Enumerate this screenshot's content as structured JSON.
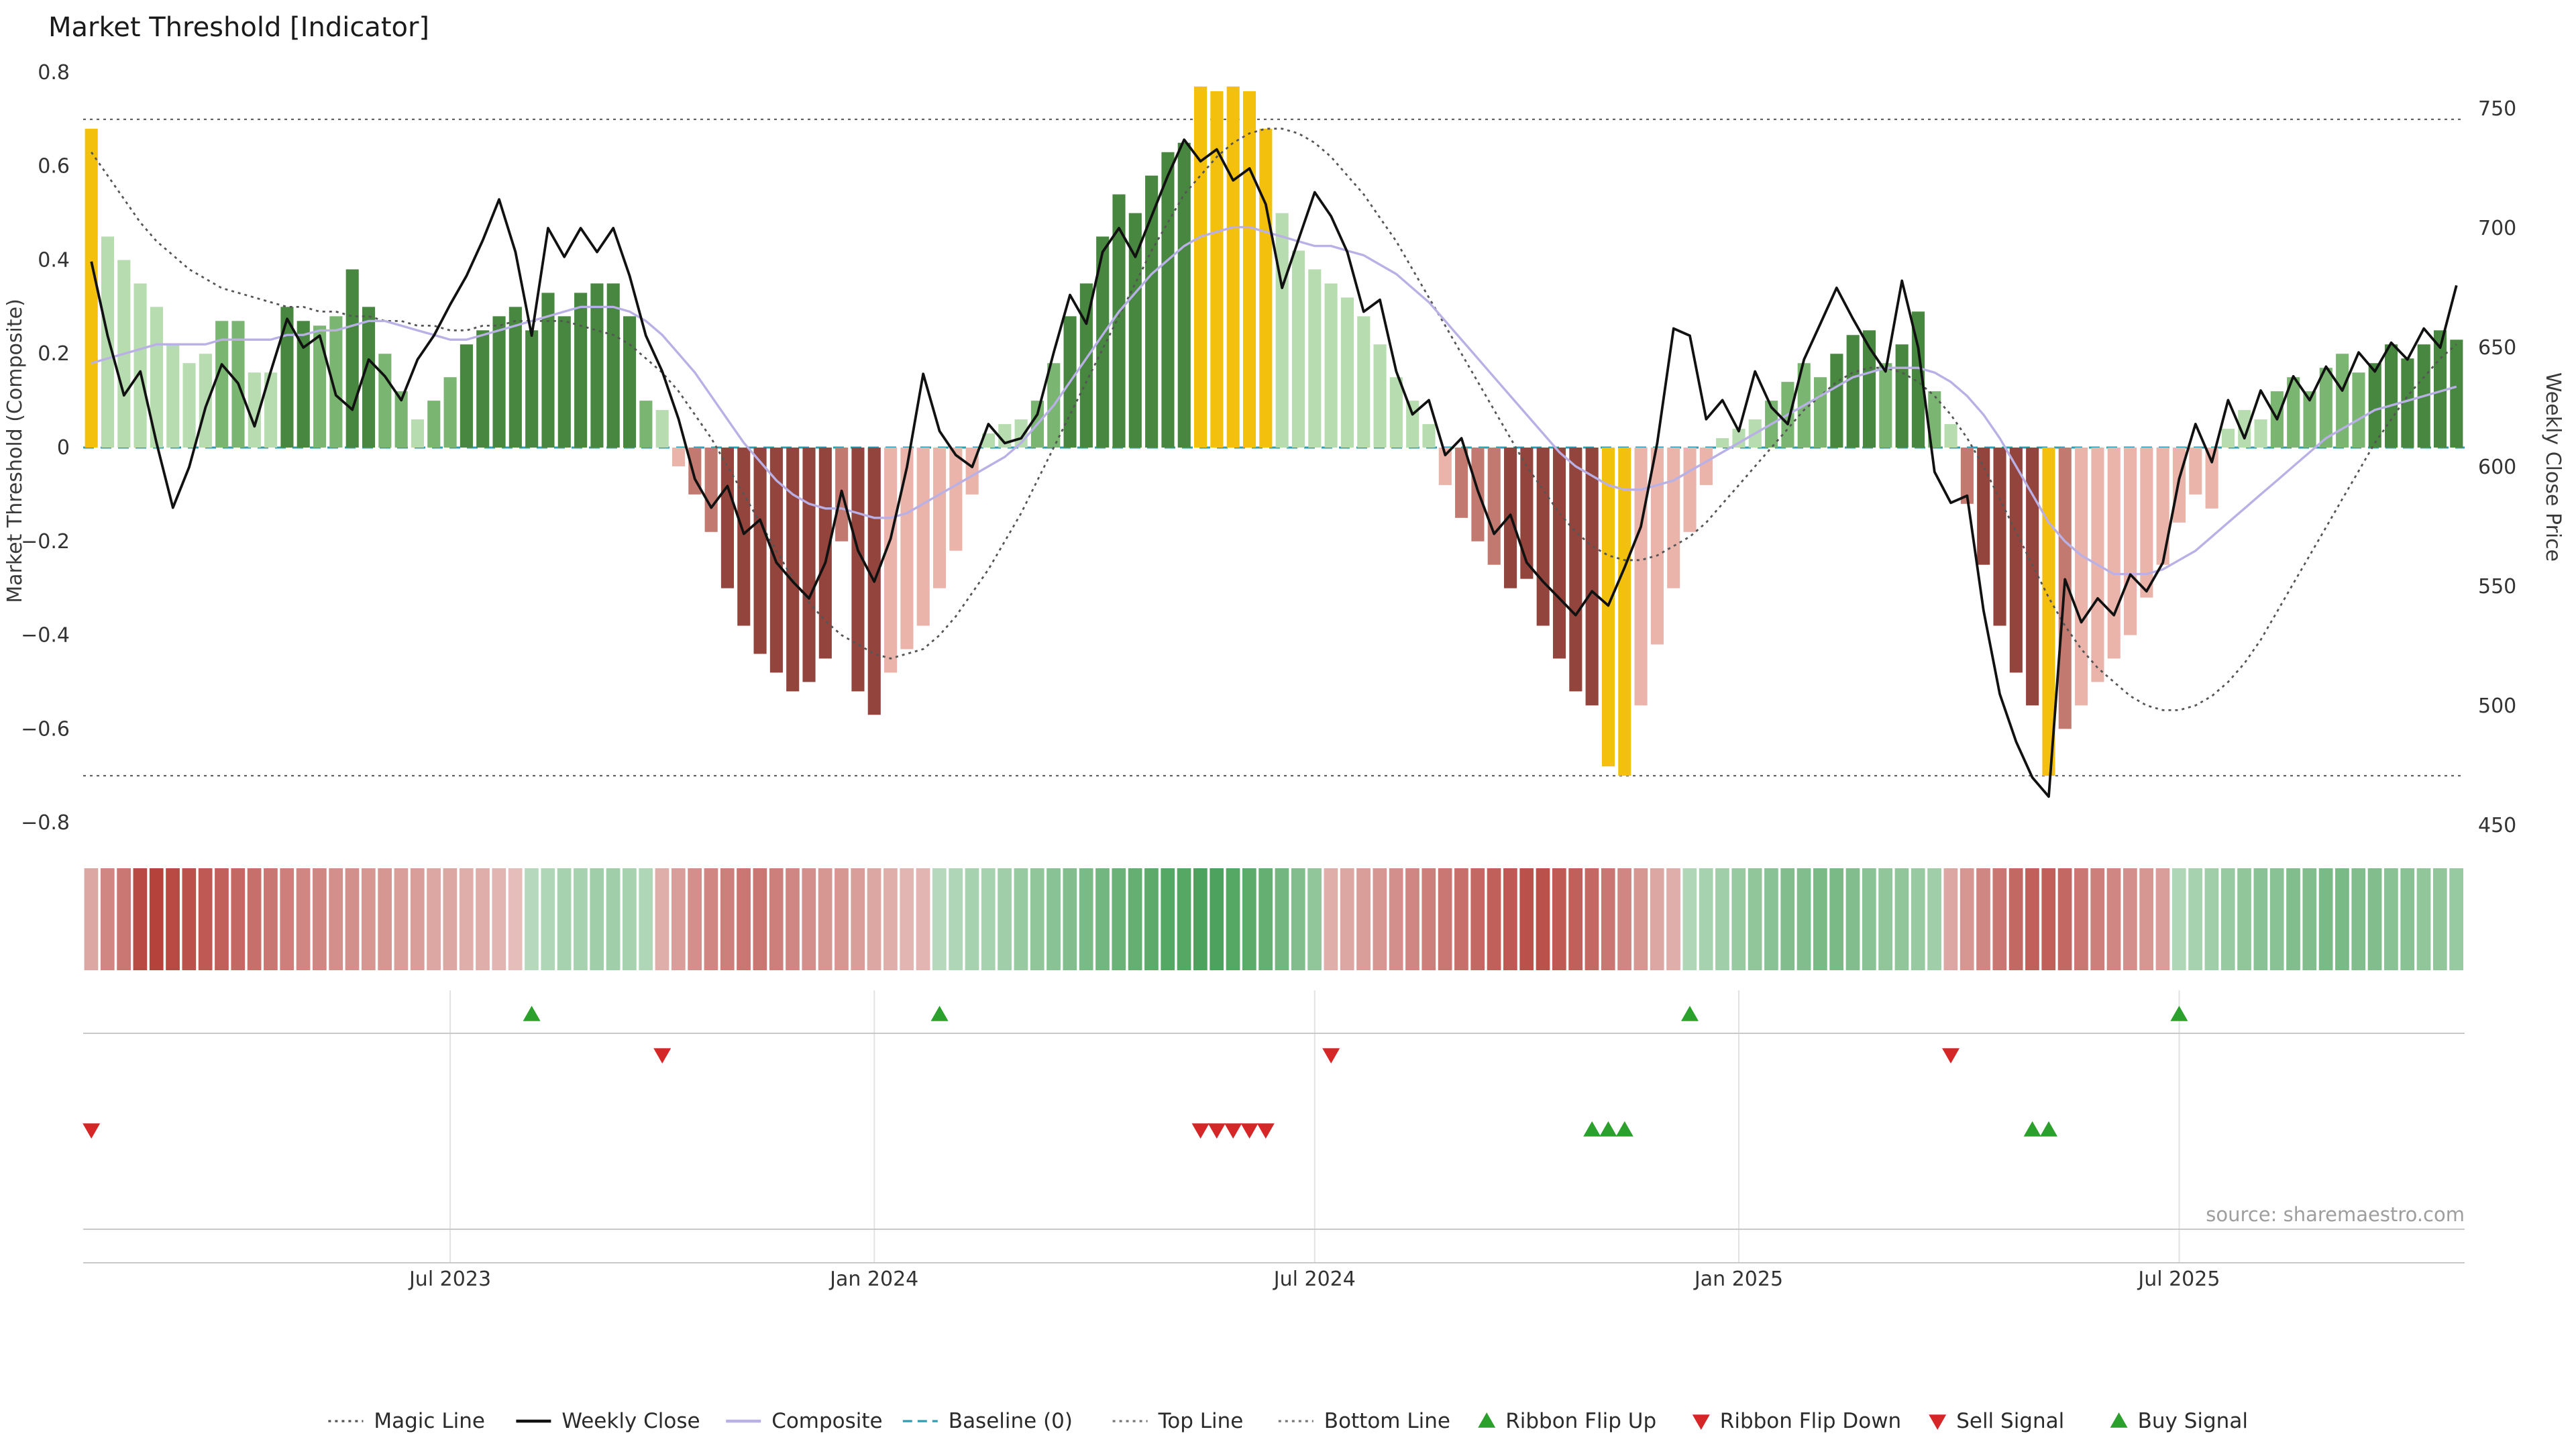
{
  "header": {
    "title": "Market Threshold [Indicator]"
  },
  "chart_data": {
    "type": "bar",
    "title": "Market Threshold [Indicator]",
    "ylabel_left": "Market Threshold (Composite)",
    "ylabel_right": "Weekly Close Price",
    "ylim_left": [
      -0.8,
      0.8
    ],
    "ylim_right": [
      450,
      750
    ],
    "left_ticks": [
      0.8,
      0.6,
      0.4,
      0.2,
      0,
      -0.2,
      -0.4,
      -0.6,
      -0.8
    ],
    "right_ticks": [
      750,
      700,
      650,
      600,
      550,
      500,
      450
    ],
    "x_ticks": [
      {
        "index": 22,
        "label": "Jul 2023"
      },
      {
        "index": 48,
        "label": "Jan 2024"
      },
      {
        "index": 75,
        "label": "Jul 2024"
      },
      {
        "index": 101,
        "label": "Jan 2025"
      },
      {
        "index": 128,
        "label": "Jul 2025"
      }
    ],
    "top_line": 0.7,
    "bottom_line": -0.7,
    "baseline": 0,
    "source": "source: sharemaestro.com",
    "series": {
      "composite_bars": {
        "name": "Market Threshold (Composite)",
        "values": [
          0.68,
          0.45,
          0.4,
          0.35,
          0.3,
          0.22,
          0.18,
          0.2,
          0.27,
          0.27,
          0.16,
          0.16,
          0.3,
          0.27,
          0.26,
          0.28,
          0.38,
          0.3,
          0.2,
          0.12,
          0.06,
          0.1,
          0.15,
          0.22,
          0.25,
          0.28,
          0.3,
          0.25,
          0.33,
          0.28,
          0.33,
          0.35,
          0.35,
          0.28,
          0.1,
          0.08,
          -0.04,
          -0.1,
          -0.18,
          -0.3,
          -0.38,
          -0.44,
          -0.48,
          -0.52,
          -0.5,
          -0.45,
          -0.2,
          -0.52,
          -0.57,
          -0.48,
          -0.43,
          -0.38,
          -0.3,
          -0.22,
          -0.1,
          0.03,
          0.05,
          0.06,
          0.1,
          0.18,
          0.28,
          0.35,
          0.45,
          0.54,
          0.5,
          0.58,
          0.63,
          0.65,
          0.77,
          0.76,
          0.77,
          0.76,
          0.68,
          0.5,
          0.42,
          0.38,
          0.35,
          0.32,
          0.28,
          0.22,
          0.15,
          0.1,
          0.05,
          -0.08,
          -0.15,
          -0.2,
          -0.25,
          -0.3,
          -0.28,
          -0.38,
          -0.45,
          -0.52,
          -0.55,
          -0.68,
          -0.7,
          -0.55,
          -0.42,
          -0.3,
          -0.18,
          -0.08,
          0.02,
          0.04,
          0.06,
          0.1,
          0.14,
          0.18,
          0.15,
          0.2,
          0.24,
          0.25,
          0.18,
          0.22,
          0.29,
          0.12,
          0.05,
          -0.12,
          -0.25,
          -0.38,
          -0.48,
          -0.55,
          -0.7,
          -0.6,
          -0.55,
          -0.5,
          -0.45,
          -0.4,
          -0.32,
          -0.25,
          -0.16,
          -0.1,
          -0.13,
          0.04,
          0.08,
          0.06,
          0.12,
          0.15,
          0.12,
          0.17,
          0.2,
          0.16,
          0.18,
          0.22,
          0.19,
          0.22,
          0.25,
          0.23
        ],
        "tones_rows": [
          "Glllllllmm",
          "llddmmddmm",
          "lmmddddddd",
          "ddddmllmmd",
          "ddddddmddl",
          "llllllllmm",
          "ddddddddGG",
          "GGGlllllll",
          "llllmmmddd",
          "dddGGlllll",
          "lllmmmmddd",
          "mddmlmdddd",
          "Gmllllllll",
          "llllmmmmmm",
          "dddddd"
        ]
      },
      "weekly_close": {
        "name": "Weekly Close",
        "axis": "right",
        "values": [
          686,
          655,
          630,
          640,
          610,
          583,
          600,
          625,
          643,
          635,
          617,
          640,
          662,
          650,
          655,
          630,
          624,
          645,
          638,
          628,
          645,
          655,
          668,
          680,
          695,
          712,
          690,
          655,
          700,
          688,
          700,
          690,
          700,
          680,
          655,
          640,
          620,
          595,
          583,
          592,
          572,
          578,
          560,
          552,
          545,
          560,
          590,
          565,
          552,
          570,
          600,
          639,
          615,
          605,
          600,
          618,
          610,
          612,
          622,
          648,
          672,
          660,
          690,
          700,
          688,
          705,
          722,
          737,
          728,
          733,
          720,
          725,
          710,
          675,
          695,
          715,
          705,
          690,
          665,
          670,
          640,
          622,
          628,
          605,
          612,
          590,
          572,
          580,
          560,
          552,
          545,
          538,
          548,
          542,
          558,
          575,
          610,
          658,
          655,
          620,
          628,
          615,
          640,
          625,
          618,
          645,
          660,
          675,
          662,
          650,
          640,
          678,
          650,
          598,
          585,
          588,
          540,
          505,
          485,
          470,
          462,
          553,
          535,
          545,
          538,
          555,
          548,
          560,
          595,
          618,
          602,
          628,
          612,
          632,
          620,
          638,
          628,
          642,
          632,
          648,
          640,
          652,
          645,
          658,
          650,
          676
        ]
      },
      "composite_line": {
        "name": "Composite",
        "axis": "left",
        "values": [
          0.18,
          0.19,
          0.2,
          0.21,
          0.22,
          0.22,
          0.22,
          0.22,
          0.23,
          0.23,
          0.23,
          0.23,
          0.24,
          0.24,
          0.25,
          0.25,
          0.26,
          0.27,
          0.27,
          0.26,
          0.25,
          0.24,
          0.23,
          0.23,
          0.24,
          0.25,
          0.26,
          0.27,
          0.28,
          0.29,
          0.3,
          0.3,
          0.3,
          0.29,
          0.27,
          0.24,
          0.2,
          0.16,
          0.11,
          0.06,
          0.01,
          -0.03,
          -0.07,
          -0.1,
          -0.12,
          -0.13,
          -0.13,
          -0.14,
          -0.15,
          -0.15,
          -0.14,
          -0.12,
          -0.1,
          -0.08,
          -0.06,
          -0.04,
          -0.02,
          0.01,
          0.05,
          0.09,
          0.14,
          0.19,
          0.24,
          0.29,
          0.33,
          0.37,
          0.4,
          0.43,
          0.45,
          0.46,
          0.47,
          0.47,
          0.46,
          0.45,
          0.44,
          0.43,
          0.43,
          0.42,
          0.41,
          0.39,
          0.37,
          0.34,
          0.31,
          0.27,
          0.23,
          0.19,
          0.15,
          0.11,
          0.07,
          0.03,
          -0.01,
          -0.04,
          -0.06,
          -0.08,
          -0.09,
          -0.09,
          -0.08,
          -0.07,
          -0.05,
          -0.03,
          -0.01,
          0.01,
          0.03,
          0.05,
          0.07,
          0.09,
          0.11,
          0.13,
          0.15,
          0.16,
          0.17,
          0.17,
          0.17,
          0.16,
          0.14,
          0.11,
          0.07,
          0.02,
          -0.04,
          -0.1,
          -0.16,
          -0.2,
          -0.23,
          -0.25,
          -0.27,
          -0.27,
          -0.27,
          -0.26,
          -0.24,
          -0.22,
          -0.19,
          -0.16,
          -0.13,
          -0.1,
          -0.07,
          -0.04,
          -0.01,
          0.02,
          0.04,
          0.06,
          0.08,
          0.09,
          0.1,
          0.11,
          0.12,
          0.13
        ]
      },
      "magic_line": {
        "name": "Magic Line",
        "axis": "left",
        "values": [
          0.63,
          0.58,
          0.53,
          0.48,
          0.44,
          0.41,
          0.38,
          0.36,
          0.34,
          0.33,
          0.32,
          0.31,
          0.3,
          0.3,
          0.29,
          0.29,
          0.28,
          0.28,
          0.27,
          0.27,
          0.26,
          0.26,
          0.25,
          0.25,
          0.26,
          0.26,
          0.27,
          0.27,
          0.27,
          0.27,
          0.26,
          0.25,
          0.24,
          0.22,
          0.19,
          0.16,
          0.12,
          0.07,
          0.02,
          -0.04,
          -0.1,
          -0.16,
          -0.22,
          -0.28,
          -0.33,
          -0.37,
          -0.4,
          -0.42,
          -0.44,
          -0.45,
          -0.44,
          -0.43,
          -0.4,
          -0.36,
          -0.31,
          -0.26,
          -0.2,
          -0.14,
          -0.07,
          0,
          0.07,
          0.14,
          0.21,
          0.28,
          0.35,
          0.42,
          0.48,
          0.54,
          0.58,
          0.62,
          0.65,
          0.67,
          0.68,
          0.68,
          0.67,
          0.65,
          0.62,
          0.58,
          0.54,
          0.49,
          0.44,
          0.38,
          0.32,
          0.26,
          0.2,
          0.14,
          0.08,
          0.02,
          -0.04,
          -0.09,
          -0.14,
          -0.18,
          -0.21,
          -0.23,
          -0.24,
          -0.24,
          -0.23,
          -0.21,
          -0.19,
          -0.16,
          -0.12,
          -0.08,
          -0.04,
          0,
          0.04,
          0.08,
          0.11,
          0.14,
          0.16,
          0.17,
          0.17,
          0.16,
          0.14,
          0.11,
          0.07,
          0.02,
          -0.04,
          -0.11,
          -0.18,
          -0.25,
          -0.32,
          -0.38,
          -0.43,
          -0.47,
          -0.5,
          -0.53,
          -0.55,
          -0.56,
          -0.56,
          -0.55,
          -0.53,
          -0.5,
          -0.46,
          -0.41,
          -0.35,
          -0.29,
          -0.23,
          -0.17,
          -0.11,
          -0.05,
          0.01,
          0.06,
          0.11,
          0.15,
          0.19,
          0.22
        ]
      }
    },
    "ribbon": {
      "values": [
        -0.3,
        -0.5,
        -0.6,
        -0.9,
        -0.95,
        -0.9,
        -0.85,
        -0.8,
        -0.75,
        -0.7,
        -0.65,
        -0.6,
        -0.55,
        -0.5,
        -0.5,
        -0.45,
        -0.45,
        -0.4,
        -0.4,
        -0.35,
        -0.35,
        -0.3,
        -0.3,
        -0.25,
        -0.25,
        -0.2,
        -0.15,
        0.2,
        0.25,
        0.3,
        0.3,
        0.35,
        0.35,
        0.3,
        0.25,
        -0.25,
        -0.35,
        -0.45,
        -0.5,
        -0.55,
        -0.6,
        -0.6,
        -0.55,
        -0.5,
        -0.45,
        -0.4,
        -0.4,
        -0.35,
        -0.3,
        -0.25,
        -0.2,
        -0.2,
        0.2,
        0.25,
        0.3,
        0.3,
        0.35,
        0.4,
        0.45,
        0.5,
        0.55,
        0.6,
        0.65,
        0.7,
        0.75,
        0.8,
        0.85,
        0.85,
        0.9,
        0.9,
        0.85,
        0.8,
        0.75,
        0.65,
        0.55,
        0.45,
        -0.25,
        -0.3,
        -0.35,
        -0.4,
        -0.45,
        -0.5,
        -0.55,
        -0.6,
        -0.65,
        -0.7,
        -0.75,
        -0.8,
        -0.85,
        -0.85,
        -0.8,
        -0.75,
        -0.7,
        -0.6,
        -0.5,
        -0.4,
        -0.3,
        -0.25,
        0.25,
        0.3,
        0.35,
        0.4,
        0.45,
        0.5,
        0.55,
        0.55,
        0.6,
        0.6,
        0.55,
        0.5,
        0.45,
        0.45,
        0.4,
        0.35,
        -0.3,
        -0.4,
        -0.5,
        -0.6,
        -0.7,
        -0.75,
        -0.75,
        -0.7,
        -0.6,
        -0.55,
        -0.5,
        -0.45,
        -0.4,
        -0.35,
        0.25,
        0.3,
        0.35,
        0.4,
        0.45,
        0.5,
        0.5,
        0.55,
        0.55,
        0.6,
        0.6,
        0.55,
        0.55,
        0.5,
        0.5,
        0.45,
        0.45,
        0.4
      ]
    },
    "signals": {
      "ribbon_flip_up": [
        27,
        52,
        98,
        128
      ],
      "ribbon_flip_down": [
        35,
        76,
        114
      ],
      "sell": [
        0,
        68,
        69,
        70,
        71,
        72
      ],
      "buy": [
        92,
        93,
        94,
        119,
        120
      ]
    }
  },
  "legend": {
    "items": [
      {
        "label": "Magic Line",
        "swatch": "dotted",
        "color": "#555555"
      },
      {
        "label": "Weekly Close",
        "swatch": "solid",
        "color": "#111111"
      },
      {
        "label": "Composite",
        "swatch": "solid",
        "color": "#b9b0e6"
      },
      {
        "label": "Baseline (0)",
        "swatch": "dashed",
        "color": "#2b9eb3"
      },
      {
        "label": "Top Line",
        "swatch": "dotted",
        "color": "#777777"
      },
      {
        "label": "Bottom Line",
        "swatch": "dotted",
        "color": "#777777"
      },
      {
        "label": "Ribbon Flip Up",
        "swatch": "triangle-up",
        "color": "#2ca02c"
      },
      {
        "label": "Ribbon Flip Down",
        "swatch": "triangle-down",
        "color": "#d62728"
      },
      {
        "label": "Sell Signal",
        "swatch": "triangle-down",
        "color": "#d62728"
      },
      {
        "label": "Buy Signal",
        "swatch": "triangle-up",
        "color": "#2ca02c"
      }
    ]
  },
  "colors": {
    "gold": "#f4c00e",
    "green": {
      "light": "#b7dcb0",
      "mid": "#7ab571",
      "dark": "#48873f"
    },
    "red": {
      "light": "#eab4ab",
      "mid": "#c27a70",
      "dark": "#93453d"
    },
    "ribbon_green": "#3e9b4f",
    "ribbon_red": "#b23a33",
    "weekly_close": "#111111",
    "composite": "#b9b0e6",
    "magic": "#555555",
    "baseline": "#2b9eb3",
    "reference": "#666666",
    "signal_green": "#2ca02c",
    "signal_red": "#d62728"
  }
}
